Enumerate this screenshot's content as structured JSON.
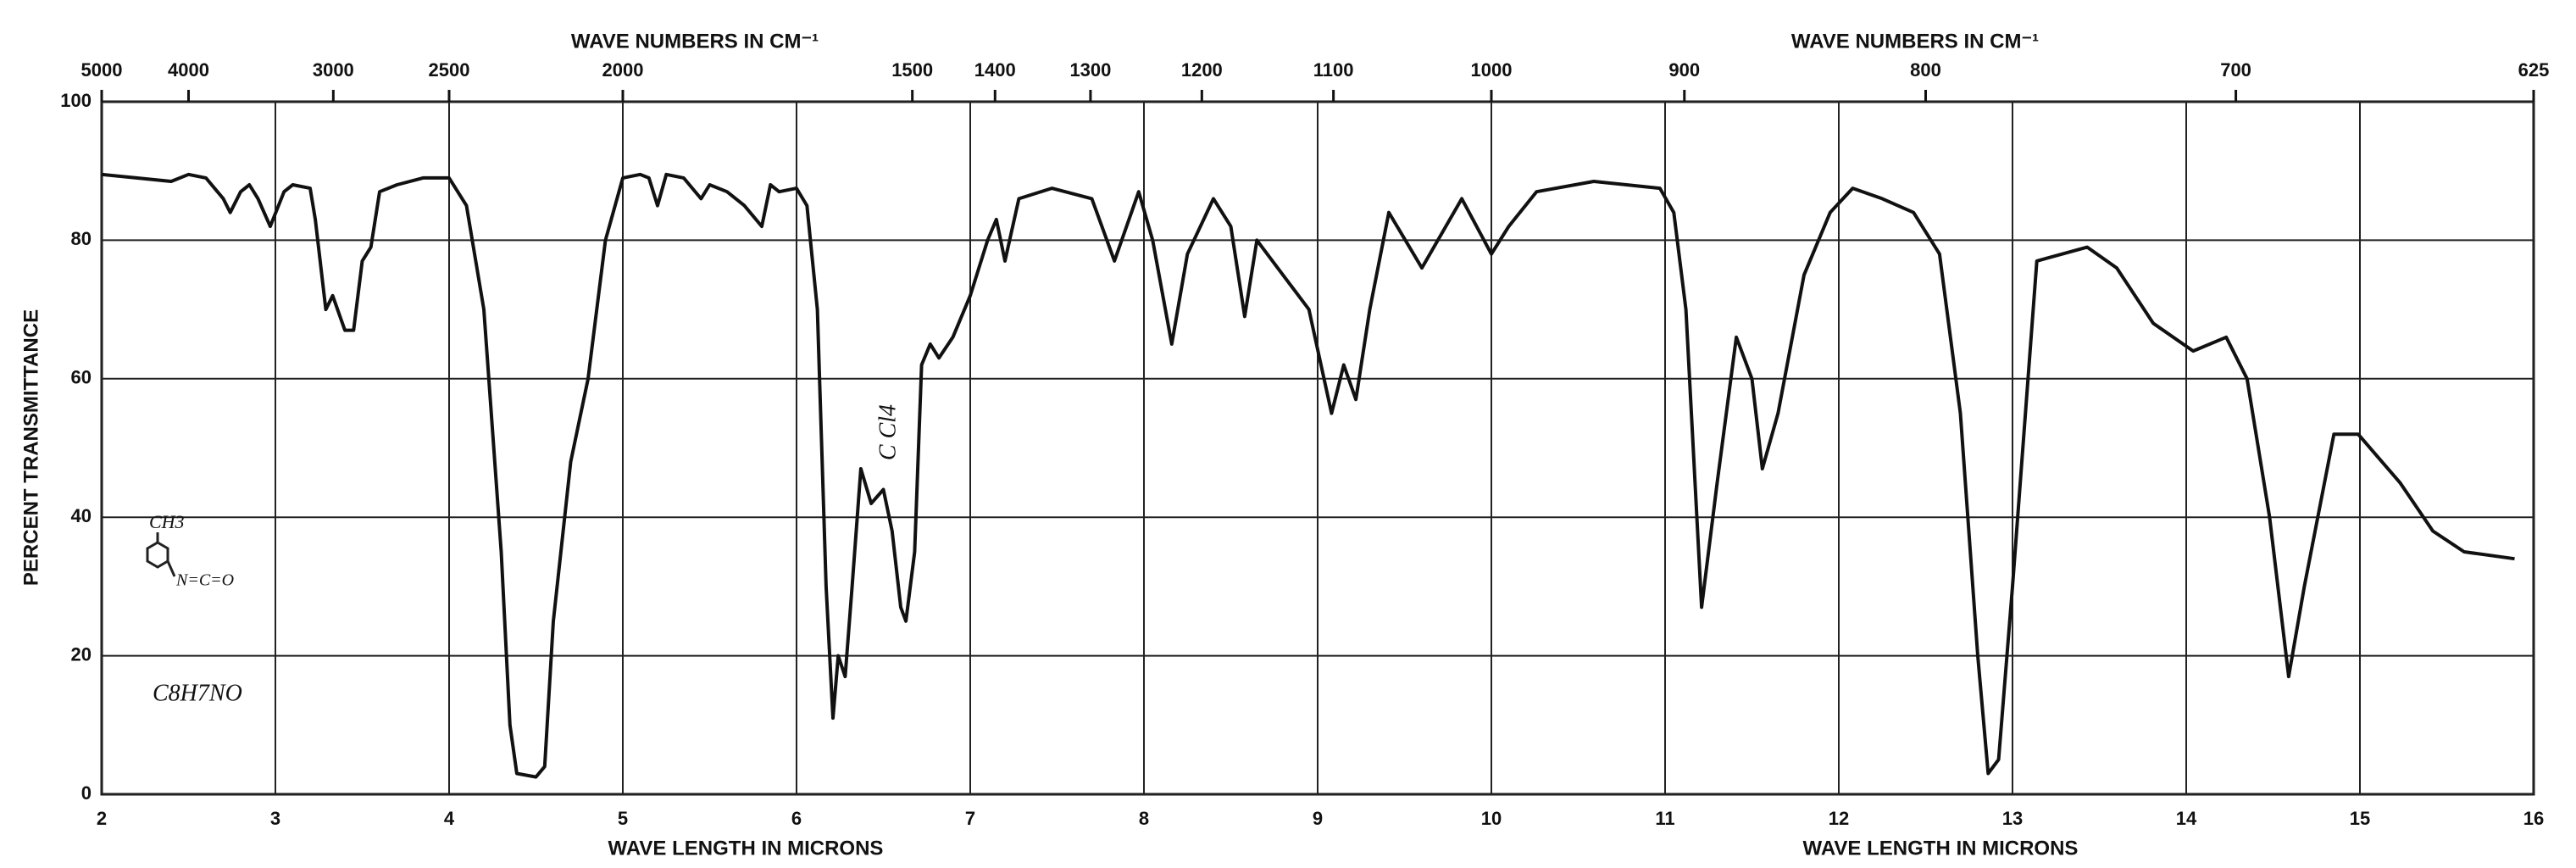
{
  "chart_data": {
    "type": "line",
    "xlabel": "WAVE LENGTH IN MICRONS",
    "x2label": "WAVE NUMBERS IN CM⁻¹",
    "ylabel": "PERCENT TRANSMITTANCE",
    "xlim": [
      2,
      16
    ],
    "xticks": [
      2,
      3,
      4,
      5,
      6,
      7,
      8,
      9,
      10,
      11,
      12,
      13,
      14,
      15,
      16
    ],
    "x2lim": [
      5000,
      625
    ],
    "x2_scale": "reciprocal",
    "x2ticks": [
      5000,
      4000,
      3000,
      2500,
      2000,
      1500,
      1400,
      1300,
      1200,
      1100,
      1000,
      900,
      800,
      700,
      625
    ],
    "ylim": [
      0,
      100
    ],
    "yticks": [
      0,
      20,
      40,
      60,
      80,
      100
    ],
    "grid": true,
    "x": [
      2.0,
      2.2,
      2.4,
      2.5,
      2.6,
      2.7,
      2.74,
      2.8,
      2.85,
      2.9,
      2.97,
      3.05,
      3.1,
      3.2,
      3.23,
      3.29,
      3.33,
      3.4,
      3.45,
      3.5,
      3.55,
      3.6,
      3.7,
      3.85,
      4.0,
      4.1,
      4.2,
      4.3,
      4.35,
      4.39,
      4.5,
      4.55,
      4.6,
      4.7,
      4.8,
      4.9,
      5.0,
      5.1,
      5.15,
      5.2,
      5.25,
      5.35,
      5.45,
      5.5,
      5.6,
      5.7,
      5.8,
      5.85,
      5.9,
      6.0,
      6.06,
      6.12,
      6.17,
      6.21,
      6.24,
      6.28,
      6.32,
      6.37,
      6.43,
      6.5,
      6.55,
      6.6,
      6.63,
      6.68,
      6.72,
      6.77,
      6.82,
      6.9,
      7.0,
      7.1,
      7.15,
      7.2,
      7.28,
      7.47,
      7.7,
      7.83,
      7.97,
      8.05,
      8.16,
      8.25,
      8.4,
      8.5,
      8.58,
      8.65,
      8.8,
      8.95,
      9.08,
      9.15,
      9.22,
      9.3,
      9.41,
      9.6,
      9.83,
      10.0,
      10.1,
      10.26,
      10.59,
      10.97,
      11.05,
      11.12,
      11.21,
      11.3,
      11.41,
      11.5,
      11.56,
      11.65,
      11.8,
      11.95,
      12.08,
      12.25,
      12.43,
      12.58,
      12.7,
      12.8,
      12.86,
      12.92,
      13.0,
      13.14,
      13.43,
      13.6,
      13.81,
      14.04,
      14.23,
      14.35,
      14.48,
      14.59,
      14.68,
      14.85,
      14.99,
      15.23,
      15.42,
      15.6,
      15.89
    ],
    "series": [
      {
        "color": "#111111",
        "values": [
          89.5,
          89,
          88.5,
          89.5,
          89,
          86,
          84,
          87,
          88,
          86,
          82,
          87,
          88,
          87.5,
          83,
          70,
          72,
          67,
          67,
          77,
          79,
          87,
          88,
          89,
          89,
          85,
          70,
          35,
          10,
          3,
          2.5,
          4,
          25,
          48,
          60,
          80,
          89,
          89.5,
          89,
          85,
          89.5,
          89,
          86,
          88,
          87,
          85,
          82,
          88,
          87,
          87.5,
          85,
          70,
          30,
          11,
          20,
          17,
          30,
          47,
          42,
          44,
          38,
          27,
          25,
          35,
          62,
          65,
          63,
          66,
          72,
          80,
          83,
          77,
          86,
          87.5,
          86,
          77,
          87,
          80,
          65,
          78,
          86,
          82,
          69,
          80,
          75,
          70,
          55,
          62,
          57,
          70,
          84,
          76,
          86,
          78,
          82,
          87,
          88.5,
          87.5,
          84,
          70,
          27,
          45,
          66,
          60,
          47,
          55,
          75,
          84,
          87.5,
          86,
          84,
          78,
          55,
          20,
          3,
          5,
          30,
          77,
          79,
          76,
          68,
          64,
          66,
          60,
          40,
          17,
          30,
          52,
          52,
          45,
          38,
          35,
          34
        ]
      }
    ],
    "annotations": [
      "C Cl4",
      "C8H7NO",
      "CH3",
      "N=C=O"
    ]
  }
}
